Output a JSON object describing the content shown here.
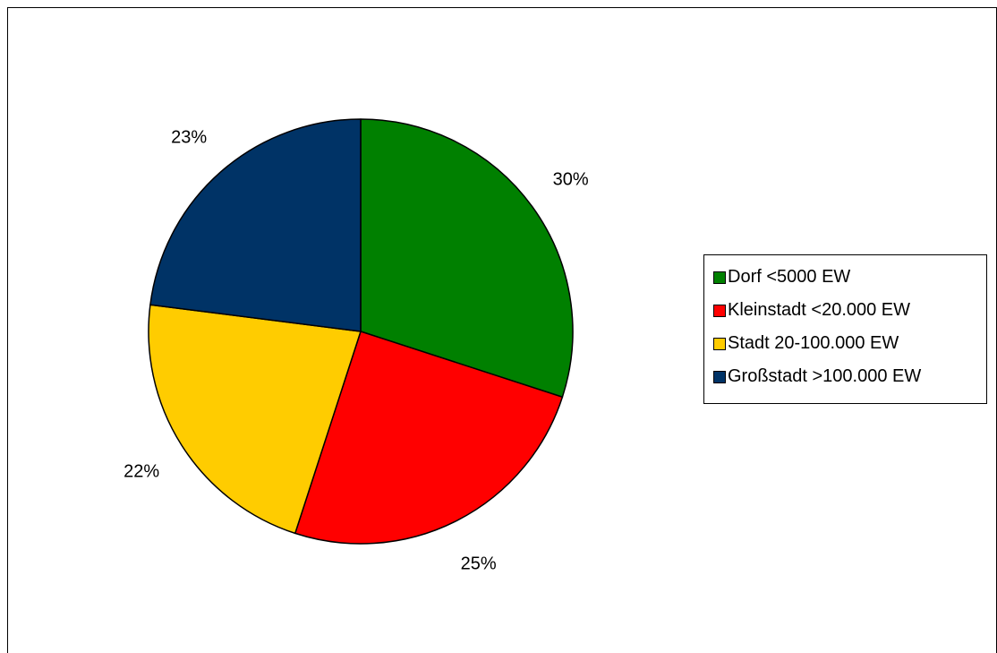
{
  "chart_data": {
    "type": "pie",
    "title": "",
    "start_angle_deg": 0,
    "direction": "clockwise",
    "slices": [
      {
        "label": "Dorf <5000 EW",
        "value": 30,
        "value_label": "30%",
        "color": "#008000"
      },
      {
        "label": "Kleinstadt <20.000 EW",
        "value": 25,
        "value_label": "25%",
        "color": "#ff0000"
      },
      {
        "label": "Stadt 20-100.000 EW",
        "value": 22,
        "value_label": "22%",
        "color": "#ffcc00"
      },
      {
        "label": "Großstadt >100.000 EW",
        "value": 23,
        "value_label": "23%",
        "color": "#003366"
      }
    ],
    "legend": {
      "position": "right"
    }
  }
}
